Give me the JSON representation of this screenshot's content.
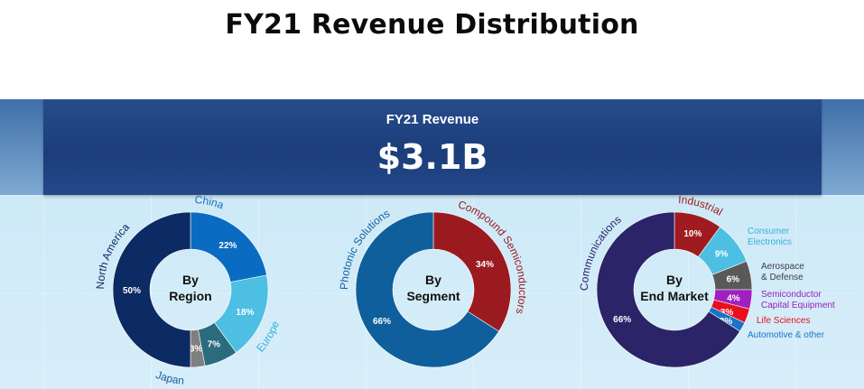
{
  "page": {
    "title": "FY21 Revenue Distribution",
    "banner_label": "FY21 Revenue",
    "banner_value": "$3.1B"
  },
  "colors": {
    "banner": "#1f4482",
    "north_america": "#0c2a63",
    "china": "#0a6cc0",
    "europe": "#4cbfe2",
    "japan": "#2a6c7e",
    "other_region": "#7f7f7f",
    "photonic": "#0e5f9c",
    "compound": "#9b1a20",
    "communications": "#2b2469",
    "industrial": "#a01b1f",
    "consumer": "#4cbfe2",
    "aerospace": "#595959",
    "semi_cap": "#a020c0",
    "life_sciences": "#e8101c",
    "automotive": "#1a74c8"
  },
  "chart_data": [
    {
      "type": "pie",
      "center_label": [
        "By",
        "Region"
      ],
      "slices": [
        {
          "name": "China",
          "value": 22,
          "label": "22%",
          "color": "#0a6cc0",
          "label_color": "#ffffff",
          "name_color": "#1d6fc0"
        },
        {
          "name": "Europe",
          "value": 18,
          "label": "18%",
          "color": "#4cbfe2",
          "label_color": "#ffffff",
          "name_color": "#35b2dd"
        },
        {
          "name": "",
          "value": 7,
          "label": "7%",
          "color": "#2a6c7e",
          "label_color": "#ffffff",
          "name_color": ""
        },
        {
          "name": "Japan",
          "value": 3,
          "label": "3%",
          "color": "#7f7f7f",
          "label_color": "#ffffff",
          "name_color": "#1a5fa5"
        },
        {
          "name": "North America",
          "value": 50,
          "label": "50%",
          "color": "#0c2a63",
          "label_color": "#ffffff",
          "name_color": "#0c2a63"
        }
      ]
    },
    {
      "type": "pie",
      "center_label": [
        "By",
        "Segment"
      ],
      "slices": [
        {
          "name": "Compound Semiconductors",
          "value": 34,
          "label": "34%",
          "color": "#9b1a20",
          "label_color": "#ffffff",
          "name_color": "#9b1a20"
        },
        {
          "name": "Photonic Solutions",
          "value": 66,
          "label": "66%",
          "color": "#0e5f9c",
          "label_color": "#ffffff",
          "name_color": "#0e5f9c"
        }
      ]
    },
    {
      "type": "pie",
      "center_label": [
        "By",
        "End Market"
      ],
      "slices": [
        {
          "name": "Industrial",
          "value": 10,
          "label": "10%",
          "color": "#a01b1f",
          "label_color": "#ffffff",
          "name_color": "#a01b1f"
        },
        {
          "name": "Consumer Electronics",
          "name_lines": [
            "Consumer",
            "Electronics"
          ],
          "value": 9,
          "label": "9%",
          "color": "#4cbfe2",
          "label_color": "#ffffff",
          "name_color": "#35b2dd"
        },
        {
          "name": "Aerospace & Defense",
          "name_lines": [
            "Aerospace",
            "& Defense"
          ],
          "value": 6,
          "label": "6%",
          "color": "#595959",
          "label_color": "#ffffff",
          "name_color": "#404040"
        },
        {
          "name": "Semiconductor Capital Equipment",
          "name_lines": [
            "Semiconductor",
            "Capital Equipment"
          ],
          "value": 4,
          "label": "4%",
          "color": "#a020c0",
          "label_color": "#ffffff",
          "name_color": "#9a1fb8"
        },
        {
          "name": "Life Sciences",
          "value": 3,
          "label": "3%",
          "color": "#e8101c",
          "label_color": "#ffffff",
          "name_color": "#e8101c"
        },
        {
          "name": "Automotive & other",
          "value": 2,
          "label": "2%",
          "color": "#1a74c8",
          "label_color": "#ffffff",
          "name_color": "#1a74c8"
        },
        {
          "name": "Communications",
          "value": 66,
          "label": "66%",
          "color": "#2b2469",
          "label_color": "#ffffff",
          "name_color": "#2b2469"
        }
      ]
    }
  ]
}
